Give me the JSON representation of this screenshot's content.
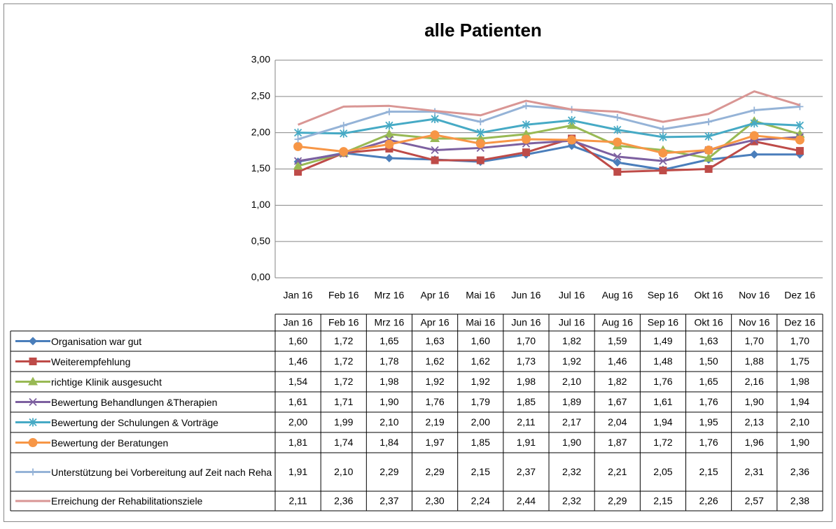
{
  "chart_data": {
    "type": "line",
    "title": "alle Patienten",
    "categories": [
      "Jan 16",
      "Feb 16",
      "Mrz 16",
      "Apr 16",
      "Mai 16",
      "Jun 16",
      "Jul 16",
      "Aug 16",
      "Sep 16",
      "Okt 16",
      "Nov 16",
      "Dez 16"
    ],
    "ylim": [
      0,
      3
    ],
    "yticks": [
      {
        "value": 0,
        "label": "0,00"
      },
      {
        "value": 0.5,
        "label": "0,50"
      },
      {
        "value": 1,
        "label": "1,00"
      },
      {
        "value": 1.5,
        "label": "1,50"
      },
      {
        "value": 2,
        "label": "2,00"
      },
      {
        "value": 2.5,
        "label": "2,50"
      },
      {
        "value": 3,
        "label": "3,00"
      }
    ],
    "grid": true,
    "series": [
      {
        "name": "Organisation war gut",
        "color": "#4a7ebb",
        "marker": "diamond",
        "values": [
          1.6,
          1.72,
          1.65,
          1.63,
          1.6,
          1.7,
          1.82,
          1.59,
          1.49,
          1.63,
          1.7,
          1.7
        ],
        "value_labels": [
          "1,60",
          "1,72",
          "1,65",
          "1,63",
          "1,60",
          "1,70",
          "1,82",
          "1,59",
          "1,49",
          "1,63",
          "1,70",
          "1,70"
        ]
      },
      {
        "name": "Weiterempfehlung",
        "color": "#be4b48",
        "marker": "square",
        "values": [
          1.46,
          1.72,
          1.78,
          1.62,
          1.62,
          1.73,
          1.92,
          1.46,
          1.48,
          1.5,
          1.88,
          1.75
        ],
        "value_labels": [
          "1,46",
          "1,72",
          "1,78",
          "1,62",
          "1,62",
          "1,73",
          "1,92",
          "1,46",
          "1,48",
          "1,50",
          "1,88",
          "1,75"
        ]
      },
      {
        "name": "richtige Klinik ausgesucht",
        "color": "#98b954",
        "marker": "triangle",
        "values": [
          1.54,
          1.72,
          1.98,
          1.92,
          1.92,
          1.98,
          2.1,
          1.82,
          1.76,
          1.65,
          2.16,
          1.98
        ],
        "value_labels": [
          "1,54",
          "1,72",
          "1,98",
          "1,92",
          "1,92",
          "1,98",
          "2,10",
          "1,82",
          "1,76",
          "1,65",
          "2,16",
          "1,98"
        ]
      },
      {
        "name": "Bewertung Behandlungen &Therapien",
        "color": "#7d60a0",
        "marker": "x",
        "values": [
          1.61,
          1.71,
          1.9,
          1.76,
          1.79,
          1.85,
          1.89,
          1.67,
          1.61,
          1.76,
          1.9,
          1.94
        ],
        "value_labels": [
          "1,61",
          "1,71",
          "1,90",
          "1,76",
          "1,79",
          "1,85",
          "1,89",
          "1,67",
          "1,61",
          "1,76",
          "1,90",
          "1,94"
        ]
      },
      {
        "name": "Bewertung der Schulungen & Vorträge",
        "color": "#46aac5",
        "marker": "star",
        "values": [
          2.0,
          1.99,
          2.1,
          2.19,
          2.0,
          2.11,
          2.17,
          2.04,
          1.94,
          1.95,
          2.13,
          2.1
        ],
        "value_labels": [
          "2,00",
          "1,99",
          "2,10",
          "2,19",
          "2,00",
          "2,11",
          "2,17",
          "2,04",
          "1,94",
          "1,95",
          "2,13",
          "2,10"
        ]
      },
      {
        "name": "Bewertung der Beratungen",
        "color": "#f79646",
        "marker": "circle",
        "values": [
          1.81,
          1.74,
          1.84,
          1.97,
          1.85,
          1.91,
          1.9,
          1.87,
          1.72,
          1.76,
          1.96,
          1.9
        ],
        "value_labels": [
          "1,81",
          "1,74",
          "1,84",
          "1,97",
          "1,85",
          "1,91",
          "1,90",
          "1,87",
          "1,72",
          "1,76",
          "1,96",
          "1,90"
        ]
      },
      {
        "name": "Unterstützung bei Vorbereitung auf Zeit nach Reha",
        "color": "#95b3d7",
        "marker": "plus",
        "values": [
          1.91,
          2.1,
          2.29,
          2.29,
          2.15,
          2.37,
          2.32,
          2.21,
          2.05,
          2.15,
          2.31,
          2.36
        ],
        "value_labels": [
          "1,91",
          "2,10",
          "2,29",
          "2,29",
          "2,15",
          "2,37",
          "2,32",
          "2,21",
          "2,05",
          "2,15",
          "2,31",
          "2,36"
        ]
      },
      {
        "name": "Erreichung der Rehabilitationsziele",
        "color": "#d99694",
        "marker": "none",
        "values": [
          2.11,
          2.36,
          2.37,
          2.3,
          2.24,
          2.44,
          2.32,
          2.29,
          2.15,
          2.26,
          2.57,
          2.38
        ],
        "value_labels": [
          "2,11",
          "2,36",
          "2,37",
          "2,30",
          "2,24",
          "2,44",
          "2,32",
          "2,29",
          "2,15",
          "2,26",
          "2,57",
          "2,38"
        ]
      }
    ]
  }
}
